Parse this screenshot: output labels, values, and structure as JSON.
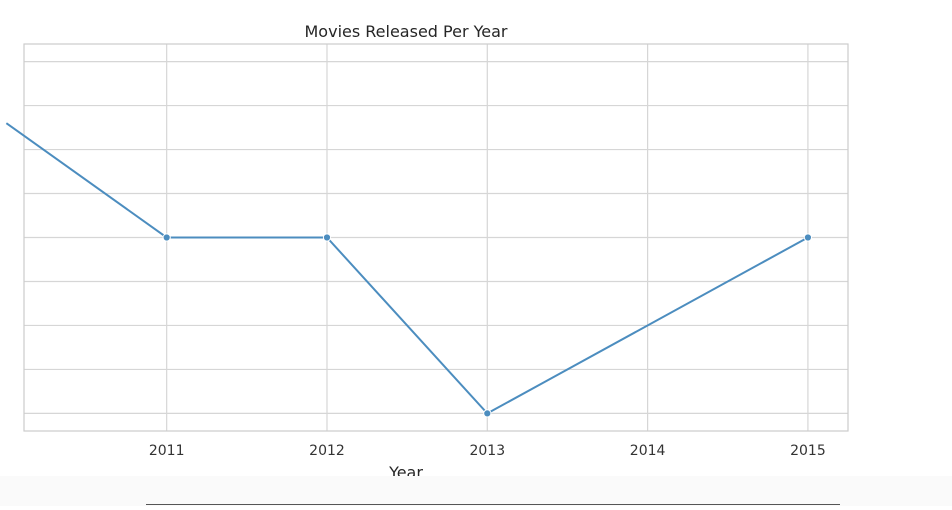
{
  "chart_data": {
    "type": "line",
    "title": "Movies Released Per Year",
    "xlabel": "Year",
    "ylabel": "",
    "x": [
      2010,
      2011,
      2012,
      2013,
      2015
    ],
    "xticks": [
      "2011",
      "2012",
      "2013",
      "2014",
      "2015"
    ],
    "xtick_values": [
      2011,
      2012,
      2013,
      2014,
      2015
    ],
    "xlim": [
      2010.11,
      2015.25
    ],
    "series": [
      {
        "values": [
          12.6,
          10.0,
          10.0,
          6.0,
          10.0
        ],
        "color": "#4c8dbf"
      }
    ],
    "ylim": [
      5.6,
      14.4
    ],
    "ygrid_values": [
      6,
      7,
      8,
      9,
      10,
      11,
      12,
      13,
      14
    ],
    "grid": true,
    "line_color": "#4c8dbf"
  }
}
